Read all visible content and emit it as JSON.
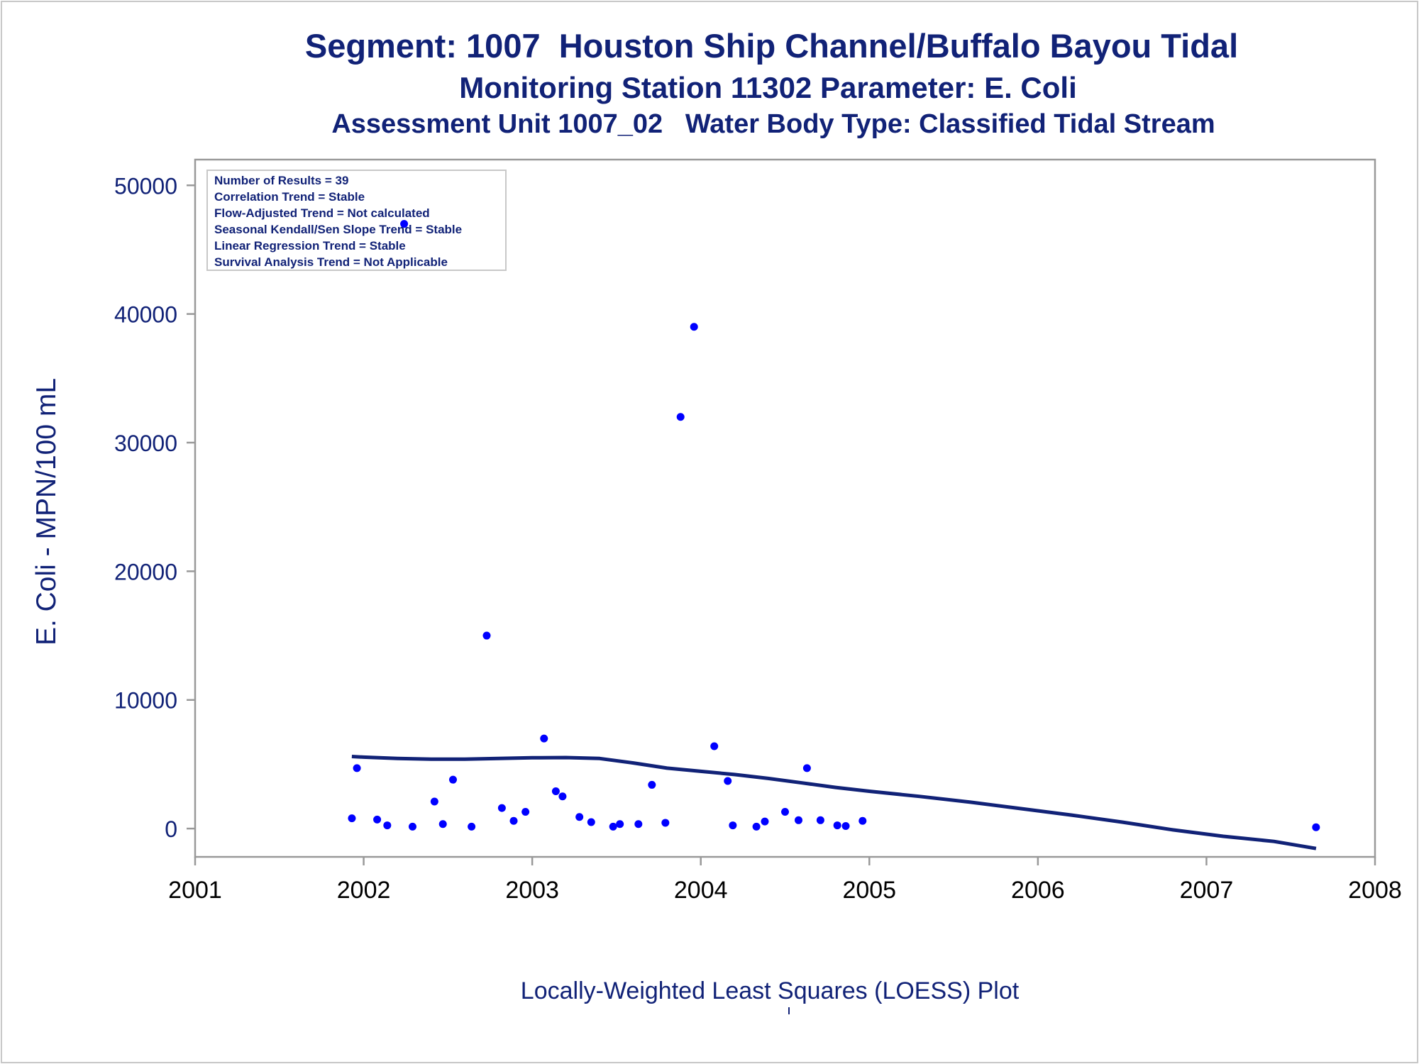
{
  "chart_data": {
    "type": "scatter",
    "title": "Segment: 1007  Houston Ship Channel/Buffalo Bayou Tidal",
    "subtitle_lines": [
      "Monitoring Station 11302 Parameter: E. Coli",
      "Assessment Unit 1007_02   Water Body Type: Classified Tidal Stream"
    ],
    "ylabel": "E. Coli - MPN/100 mL",
    "xlabel": "",
    "footnote": "Locally-Weighted Least Squares (LOESS) Plot",
    "xlim": [
      2001,
      2008
    ],
    "ylim": [
      -2200,
      52000
    ],
    "x_ticks": [
      "2001",
      "2002",
      "2003",
      "2004",
      "2005",
      "2006",
      "2007",
      "2008"
    ],
    "y_ticks": [
      "0",
      "10000",
      "20000",
      "30000",
      "40000",
      "50000"
    ],
    "grid": false,
    "colors": {
      "points": "#0000ff",
      "line": "#112277",
      "text": "#112277",
      "axis": "#999999"
    },
    "stats_box": {
      "placement": "top-left",
      "lines": [
        "Number of Results = 39",
        "Correlation Trend = Stable",
        "Flow-Adjusted Trend = Not calculated",
        "Seasonal Kendall/Sen Slope Trend = Stable",
        "Linear Regression Trend = Stable",
        "Survival Analysis Trend = Not Applicable"
      ]
    },
    "series": [
      {
        "type": "scatter",
        "points": [
          [
            2001.93,
            800
          ],
          [
            2001.96,
            4700
          ],
          [
            2002.08,
            700
          ],
          [
            2002.14,
            250
          ],
          [
            2002.24,
            47000
          ],
          [
            2002.29,
            150
          ],
          [
            2002.42,
            2100
          ],
          [
            2002.47,
            350
          ],
          [
            2002.53,
            3800
          ],
          [
            2002.64,
            150
          ],
          [
            2002.73,
            15000
          ],
          [
            2002.82,
            1600
          ],
          [
            2002.89,
            600
          ],
          [
            2002.96,
            1300
          ],
          [
            2003.07,
            7000
          ],
          [
            2003.14,
            2900
          ],
          [
            2003.18,
            2500
          ],
          [
            2003.28,
            900
          ],
          [
            2003.35,
            500
          ],
          [
            2003.48,
            150
          ],
          [
            2003.52,
            350
          ],
          [
            2003.63,
            350
          ],
          [
            2003.71,
            3400
          ],
          [
            2003.79,
            450
          ],
          [
            2003.88,
            32000
          ],
          [
            2003.96,
            39000
          ],
          [
            2004.08,
            6400
          ],
          [
            2004.16,
            3700
          ],
          [
            2004.19,
            250
          ],
          [
            2004.33,
            150
          ],
          [
            2004.38,
            550
          ],
          [
            2004.5,
            1300
          ],
          [
            2004.58,
            650
          ],
          [
            2004.63,
            4700
          ],
          [
            2004.71,
            650
          ],
          [
            2004.81,
            250
          ],
          [
            2004.86,
            200
          ],
          [
            2004.96,
            600
          ],
          [
            2007.65,
            100
          ]
        ]
      },
      {
        "type": "line",
        "points": [
          [
            2001.93,
            5600
          ],
          [
            2002.0,
            5550
          ],
          [
            2002.2,
            5450
          ],
          [
            2002.4,
            5400
          ],
          [
            2002.6,
            5400
          ],
          [
            2002.8,
            5450
          ],
          [
            2003.0,
            5500
          ],
          [
            2003.2,
            5520
          ],
          [
            2003.4,
            5450
          ],
          [
            2003.6,
            5100
          ],
          [
            2003.8,
            4700
          ],
          [
            2004.0,
            4450
          ],
          [
            2004.2,
            4200
          ],
          [
            2004.4,
            3900
          ],
          [
            2004.6,
            3550
          ],
          [
            2004.8,
            3200
          ],
          [
            2005.0,
            2900
          ],
          [
            2005.3,
            2500
          ],
          [
            2005.6,
            2050
          ],
          [
            2005.9,
            1550
          ],
          [
            2006.2,
            1050
          ],
          [
            2006.5,
            500
          ],
          [
            2006.8,
            -100
          ],
          [
            2007.1,
            -600
          ],
          [
            2007.4,
            -1000
          ],
          [
            2007.65,
            -1550
          ]
        ]
      }
    ]
  }
}
